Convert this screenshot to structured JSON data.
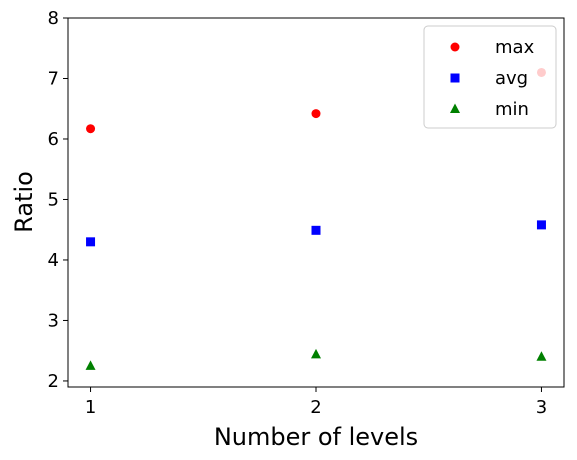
{
  "chart_data": {
    "type": "scatter",
    "title": "",
    "xlabel": "Number of levels",
    "ylabel": "Ratio",
    "x": [
      1,
      2,
      3
    ],
    "xticks": [
      "1",
      "2",
      "3"
    ],
    "yticks": [
      "2",
      "3",
      "4",
      "5",
      "6",
      "7",
      "8"
    ],
    "xlim": [
      0.9,
      3.1
    ],
    "ylim": [
      1.9,
      8.0
    ],
    "grid": false,
    "legend_position": "top-right",
    "series": [
      {
        "name": "max",
        "values": [
          6.17,
          6.42,
          7.1
        ],
        "color": "#ff0000",
        "marker": "circle"
      },
      {
        "name": "avg",
        "values": [
          4.3,
          4.49,
          4.58
        ],
        "color": "#0000ff",
        "marker": "square"
      },
      {
        "name": "min",
        "values": [
          2.25,
          2.44,
          2.4
        ],
        "color": "#008000",
        "marker": "triangle"
      }
    ]
  }
}
